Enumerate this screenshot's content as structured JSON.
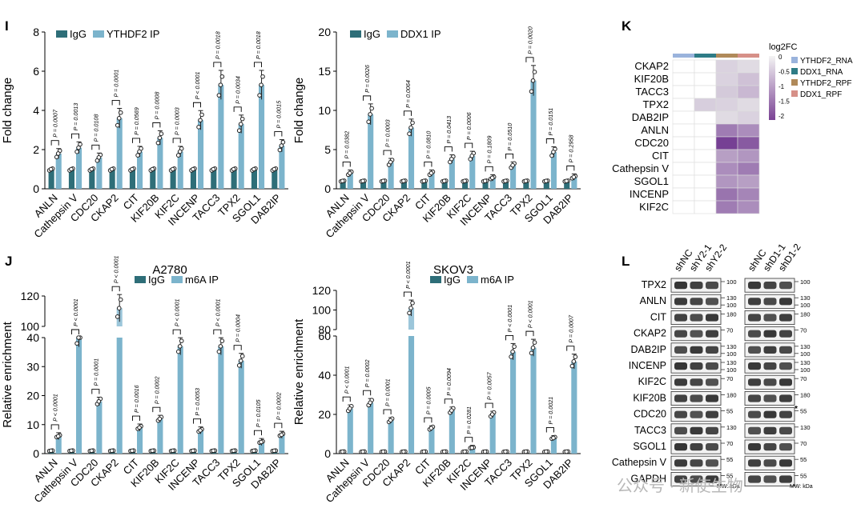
{
  "colors": {
    "igg": "#2E6E78",
    "ip": "#7CB4CC",
    "ip_light": "#9CC6DA"
  },
  "panels": {
    "I": {
      "label": "I",
      "chart_data": [
        {
          "type": "bar",
          "ylabel": "Fold change",
          "ylim": [
            0,
            8
          ],
          "yticks": [
            "0",
            "2",
            "4",
            "6",
            "8"
          ],
          "legend": [
            "IgG",
            "YTHDF2 IP"
          ],
          "categories": [
            "ANLN",
            "Cathepsin V",
            "CDC20",
            "CKAP2",
            "CIT",
            "KIF20B",
            "KIF2C",
            "INCENP",
            "TACC3",
            "TPX2",
            "SGOL1",
            "DAB2IP"
          ],
          "series": [
            {
              "name": "IgG",
              "values": [
                1,
                1,
                1,
                1,
                1,
                1,
                1,
                1,
                1,
                1,
                1,
                1
              ]
            },
            {
              "name": "YTHDF2 IP",
              "values": [
                1.8,
                2.1,
                1.6,
                3.6,
                1.9,
                2.6,
                1.9,
                3.5,
                5.3,
                3.3,
                5.3,
                2.2
              ]
            }
          ],
          "pvalues": [
            "P = 0.0007",
            "P = 0.0013",
            "P = 0.0108",
            "P = 0.0001",
            "P = 0.0569",
            "P = 0.0008",
            "P = 0.0003",
            "P < 0.0001",
            "P = 0.0018",
            "P = 0.0034",
            "P = 0.0018",
            "P = 0.0015"
          ]
        },
        {
          "type": "bar",
          "ylabel": "Fold change",
          "ylim": [
            0,
            20
          ],
          "yticks": [
            "0",
            "5",
            "10",
            "15",
            "20"
          ],
          "legend": [
            "IgG",
            "DDX1 IP"
          ],
          "categories": [
            "ANLN",
            "Cathepsin V",
            "CDC20",
            "CKAP2",
            "CIT",
            "KIF20B",
            "KIF2C",
            "INCENP",
            "TACC3",
            "TPX2",
            "SGOL1",
            "DAB2IP"
          ],
          "series": [
            {
              "name": "IgG",
              "values": [
                1,
                1,
                1,
                1,
                1,
                1,
                1,
                1,
                1,
                1,
                1,
                1
              ]
            },
            {
              "name": "DDX1 IP",
              "values": [
                2,
                9.5,
                3.4,
                7.8,
                2,
                3.8,
                4.2,
                1.4,
                3,
                13.8,
                4.7,
                1.5
              ]
            }
          ],
          "pvalues": [
            "P = 0.0382",
            "P = 0.0026",
            "P = 0.0003",
            "P = 0.0064",
            "P = 0.0810",
            "P = 0.0413",
            "P = 0.0006",
            "P = 0.1809",
            "P = 0.0510",
            "P = 0.0020",
            "P = 0.0151",
            "P = 0.2958"
          ]
        }
      ]
    },
    "J": {
      "label": "J",
      "chart_data": [
        {
          "type": "bar",
          "title": "A2780",
          "ylabel": "Relative enrichment",
          "legend": [
            "IgG",
            "m6A IP"
          ],
          "lower_range": [
            0,
            40
          ],
          "lower_ticks": [
            "0",
            "10",
            "20",
            "30",
            "40"
          ],
          "upper_range": [
            100,
            120
          ],
          "upper_ticks": [
            "100",
            "120"
          ],
          "categories": [
            "ANLN",
            "Cathepsin V",
            "CDC20",
            "CKAP2",
            "CIT",
            "KIF20B",
            "KIF2C",
            "INCENP",
            "TACC3",
            "TPX2",
            "SGOL1",
            "DAB2IP"
          ],
          "series": [
            {
              "name": "IgG",
              "values": [
                1,
                1,
                1,
                1,
                1,
                1,
                1,
                1,
                1,
                1,
                1,
                1
              ]
            },
            {
              "name": "m6A IP",
              "values": [
                6,
                40,
                18,
                112,
                9,
                12,
                37,
                8,
                37,
                32,
                4,
                6.5
              ]
            }
          ],
          "pvalues": [
            "P < 0.0001",
            "P < 0.0001",
            "P = 0.0001",
            "P < 0.0001",
            "P = 0.0016",
            "P = 0.0002",
            "P < 0.0001",
            "P = 0.0053",
            "P < 0.0001",
            "P = 0.0004",
            "P = 0.0105",
            "P = 0.0002"
          ]
        },
        {
          "type": "bar",
          "title": "SKOV3",
          "ylabel": "Relative enrichment",
          "legend": [
            "IgG",
            "m6A IP"
          ],
          "lower_range": [
            0,
            60
          ],
          "lower_ticks": [
            "0",
            "20",
            "40",
            "60"
          ],
          "upper_range": [
            80,
            120
          ],
          "upper_ticks": [
            "80",
            "100",
            "120"
          ],
          "categories": [
            "ANLN",
            "Cathepsin V",
            "CDC20",
            "CKAP2",
            "CIT",
            "KIF20B",
            "KIF2C",
            "INCENP",
            "TACC3",
            "TPX2",
            "SGOL1",
            "DAB2IP"
          ],
          "series": [
            {
              "name": "IgG",
              "values": [
                1,
                1,
                1,
                1,
                1,
                1,
                1,
                1,
                1,
                1,
                1,
                1
              ]
            },
            {
              "name": "m6A IP",
              "values": [
                23,
                26,
                17,
                102,
                13,
                22,
                3,
                20,
                52,
                54,
                8,
                47
              ]
            }
          ],
          "pvalues": [
            "P < 0.0001",
            "P = 0.0002",
            "P = 0.0001",
            "P < 0.0001",
            "P = 0.0005",
            "P = 0.0094",
            "P = 0.0281",
            "P = 0.0057",
            "P < 0.0001",
            "P < 0.0001",
            "P = 0.0021",
            "P = 0.0007"
          ]
        }
      ]
    },
    "K": {
      "label": "K",
      "legend_title": "log2FC",
      "scale_ticks": [
        "0",
        "-0.5",
        "-1",
        "-1.5",
        "-2"
      ],
      "columns": [
        {
          "name": "YTHDF2_RNA",
          "color": "#9AB3DC"
        },
        {
          "name": "DDX1_RNA",
          "color": "#2E7C86"
        },
        {
          "name": "YTHDF2_RPF",
          "color": "#B08A5A"
        },
        {
          "name": "DDX1_RPF",
          "color": "#D69088"
        }
      ],
      "chart_data": {
        "type": "heatmap",
        "rows": [
          "CKAP2",
          "KIF20B",
          "TACC3",
          "TPX2",
          "DAB2IP",
          "ANLN",
          "CDC20",
          "CIT",
          "Cathepsin V",
          "SGOL1",
          "INCENP",
          "KIF2C"
        ],
        "values": [
          [
            0,
            0,
            -0.3,
            -0.2
          ],
          [
            0,
            0,
            -0.3,
            -0.5
          ],
          [
            0,
            0,
            -0.4,
            -0.6
          ],
          [
            0,
            -0.35,
            -0.3,
            -0.2
          ],
          [
            0,
            0,
            -0.2,
            -0.3
          ],
          [
            0,
            0,
            -1.3,
            -1.1
          ],
          [
            0,
            0,
            -2.0,
            -1.7
          ],
          [
            0,
            0,
            -0.9,
            -1.0
          ],
          [
            0,
            0,
            -1.1,
            -1.3
          ],
          [
            0,
            0,
            -1.0,
            -0.9
          ],
          [
            0,
            0,
            -1.4,
            -1.2
          ],
          [
            0,
            0,
            -1.3,
            -1.1
          ]
        ]
      }
    },
    "L": {
      "label": "L",
      "left_lanes": [
        "shNC",
        "shY2-1",
        "shY2-2"
      ],
      "right_lanes": [
        "shNC",
        "shD1-1",
        "shD1-2"
      ],
      "proteins": [
        "TPX2",
        "ANLN",
        "CIT",
        "CKAP2",
        "DAB2IP",
        "INCENP",
        "KIF2C",
        "KIF20B",
        "CDC20",
        "TACC3",
        "SGOL1",
        "Cathepsin V",
        "GAPDH"
      ],
      "left_markers": [
        [
          "100"
        ],
        [
          "130",
          "100"
        ],
        [
          "180"
        ],
        [
          "70"
        ],
        [
          "130",
          "100"
        ],
        [
          "130",
          "100"
        ],
        [
          "70"
        ],
        [
          "180"
        ],
        [
          "55"
        ],
        [
          "130"
        ],
        [
          "70"
        ],
        [
          "55"
        ],
        [
          "55"
        ]
      ],
      "right_markers": [
        [
          "100"
        ],
        [
          "130",
          "100"
        ],
        [
          "180"
        ],
        [
          "70"
        ],
        [
          "130",
          "100"
        ],
        [
          "130",
          "100"
        ],
        [
          "70"
        ],
        [
          "180"
        ],
        [
          "55"
        ],
        [
          "130"
        ],
        [
          "70"
        ],
        [
          "55"
        ],
        [
          "55"
        ]
      ],
      "mw_left": "MW: kDa",
      "mw_right": "MW: kDa",
      "asterisk": "*",
      "watermark": "公众号 · 新使生物"
    }
  }
}
